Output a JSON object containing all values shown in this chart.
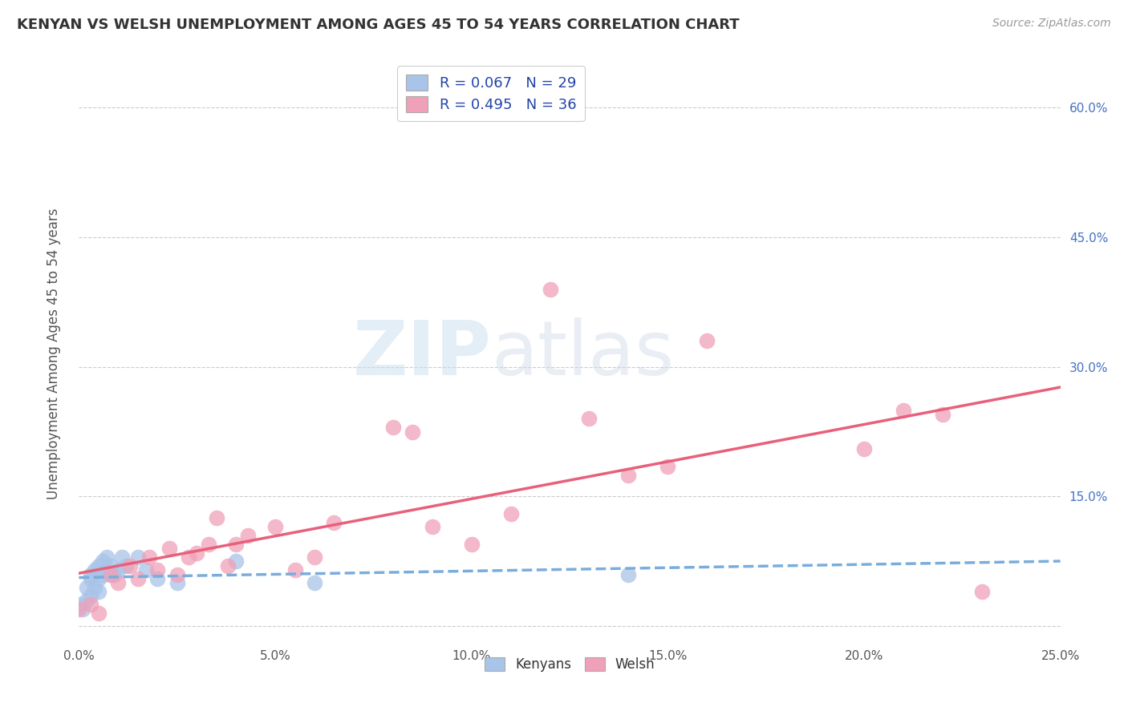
{
  "title": "KENYAN VS WELSH UNEMPLOYMENT AMONG AGES 45 TO 54 YEARS CORRELATION CHART",
  "source": "Source: ZipAtlas.com",
  "ylabel": "Unemployment Among Ages 45 to 54 years",
  "xlim": [
    0.0,
    0.25
  ],
  "ylim": [
    -0.02,
    0.65
  ],
  "xticks": [
    0.0,
    0.05,
    0.1,
    0.15,
    0.2,
    0.25
  ],
  "yticks": [
    0.0,
    0.15,
    0.3,
    0.45,
    0.6
  ],
  "xtick_labels": [
    "0.0%",
    "5.0%",
    "10.0%",
    "15.0%",
    "20.0%",
    "25.0%"
  ],
  "ytick_labels_right": [
    "",
    "15.0%",
    "30.0%",
    "45.0%",
    "60.0%"
  ],
  "kenyan_R": 0.067,
  "kenyan_N": 29,
  "welsh_R": 0.495,
  "welsh_N": 36,
  "kenyan_color": "#a8c4e8",
  "welsh_color": "#f0a0b8",
  "kenyan_line_color": "#7aacdc",
  "welsh_line_color": "#e8607a",
  "legend_label_kenyan": "Kenyans",
  "legend_label_welsh": "Welsh",
  "watermark_zip": "ZIP",
  "watermark_atlas": "atlas",
  "background_color": "#ffffff",
  "kenyan_x": [
    0.0,
    0.001,
    0.002,
    0.002,
    0.003,
    0.003,
    0.003,
    0.004,
    0.004,
    0.005,
    0.005,
    0.005,
    0.006,
    0.006,
    0.007,
    0.007,
    0.008,
    0.008,
    0.009,
    0.01,
    0.011,
    0.012,
    0.015,
    0.017,
    0.02,
    0.025,
    0.04,
    0.06,
    0.14
  ],
  "kenyan_y": [
    0.025,
    0.02,
    0.03,
    0.045,
    0.055,
    0.035,
    0.06,
    0.045,
    0.065,
    0.055,
    0.04,
    0.07,
    0.06,
    0.075,
    0.065,
    0.08,
    0.06,
    0.07,
    0.06,
    0.065,
    0.08,
    0.07,
    0.08,
    0.065,
    0.055,
    0.05,
    0.075,
    0.05,
    0.06
  ],
  "welsh_x": [
    0.0,
    0.003,
    0.005,
    0.008,
    0.01,
    0.013,
    0.015,
    0.018,
    0.02,
    0.023,
    0.025,
    0.028,
    0.03,
    0.033,
    0.035,
    0.038,
    0.04,
    0.043,
    0.05,
    0.055,
    0.06,
    0.065,
    0.08,
    0.085,
    0.09,
    0.1,
    0.11,
    0.12,
    0.13,
    0.14,
    0.15,
    0.16,
    0.2,
    0.21,
    0.22,
    0.23
  ],
  "welsh_y": [
    0.02,
    0.025,
    0.015,
    0.06,
    0.05,
    0.07,
    0.055,
    0.08,
    0.065,
    0.09,
    0.06,
    0.08,
    0.085,
    0.095,
    0.125,
    0.07,
    0.095,
    0.105,
    0.115,
    0.065,
    0.08,
    0.12,
    0.23,
    0.225,
    0.115,
    0.095,
    0.13,
    0.39,
    0.24,
    0.175,
    0.185,
    0.33,
    0.205,
    0.25,
    0.245,
    0.04
  ]
}
